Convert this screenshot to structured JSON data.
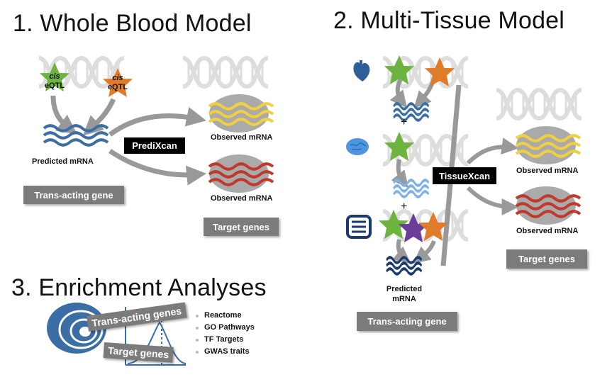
{
  "titles": {
    "whole_blood": "1. Whole Blood Model",
    "multi_tissue": "2. Multi-Tissue Model",
    "enrichment": "3. Enrichment Analyses"
  },
  "panel1": {
    "cis_star_green": {
      "line1": "cis",
      "line2": "eQTL"
    },
    "cis_star_orange": {
      "line1": "cis",
      "line2": "eQTL"
    },
    "predicted_mrna": "Predicted mRNA",
    "method": "PrediXcan",
    "observed_top": "Observed mRNA",
    "observed_bottom": "Observed mRNA",
    "trans_acting": "Trans-acting gene",
    "target_genes": "Target genes"
  },
  "panel2": {
    "plus_1": "+",
    "plus_2": "+",
    "method": "TissueXcan",
    "observed_top": "Observed mRNA",
    "observed_bottom": "Observed mRNA",
    "predicted_line1": "Predicted",
    "predicted_line2": "mRNA",
    "trans_acting": "Trans-acting gene",
    "target_genes": "Target genes"
  },
  "panel3": {
    "trans_acting_genes": "Trans-acting genes",
    "target_genes": "Target genes",
    "list": [
      "Reactome",
      "GO Pathways",
      "TF Targets",
      "GWAS traits"
    ]
  },
  "colors": {
    "green_star": "#6cb33f",
    "orange_star": "#e07b2a",
    "purple_star": "#6a3d9a",
    "blue_wave": "#3a6ea5",
    "yellow_wave": "#f0d040",
    "red_wave": "#c0392b",
    "gray_box": "#7b7b7b"
  },
  "icons": [
    "dna-icon",
    "heart-icon",
    "brain-icon",
    "intestine-icon",
    "cell-icon",
    "gaussian-plot-icon"
  ]
}
